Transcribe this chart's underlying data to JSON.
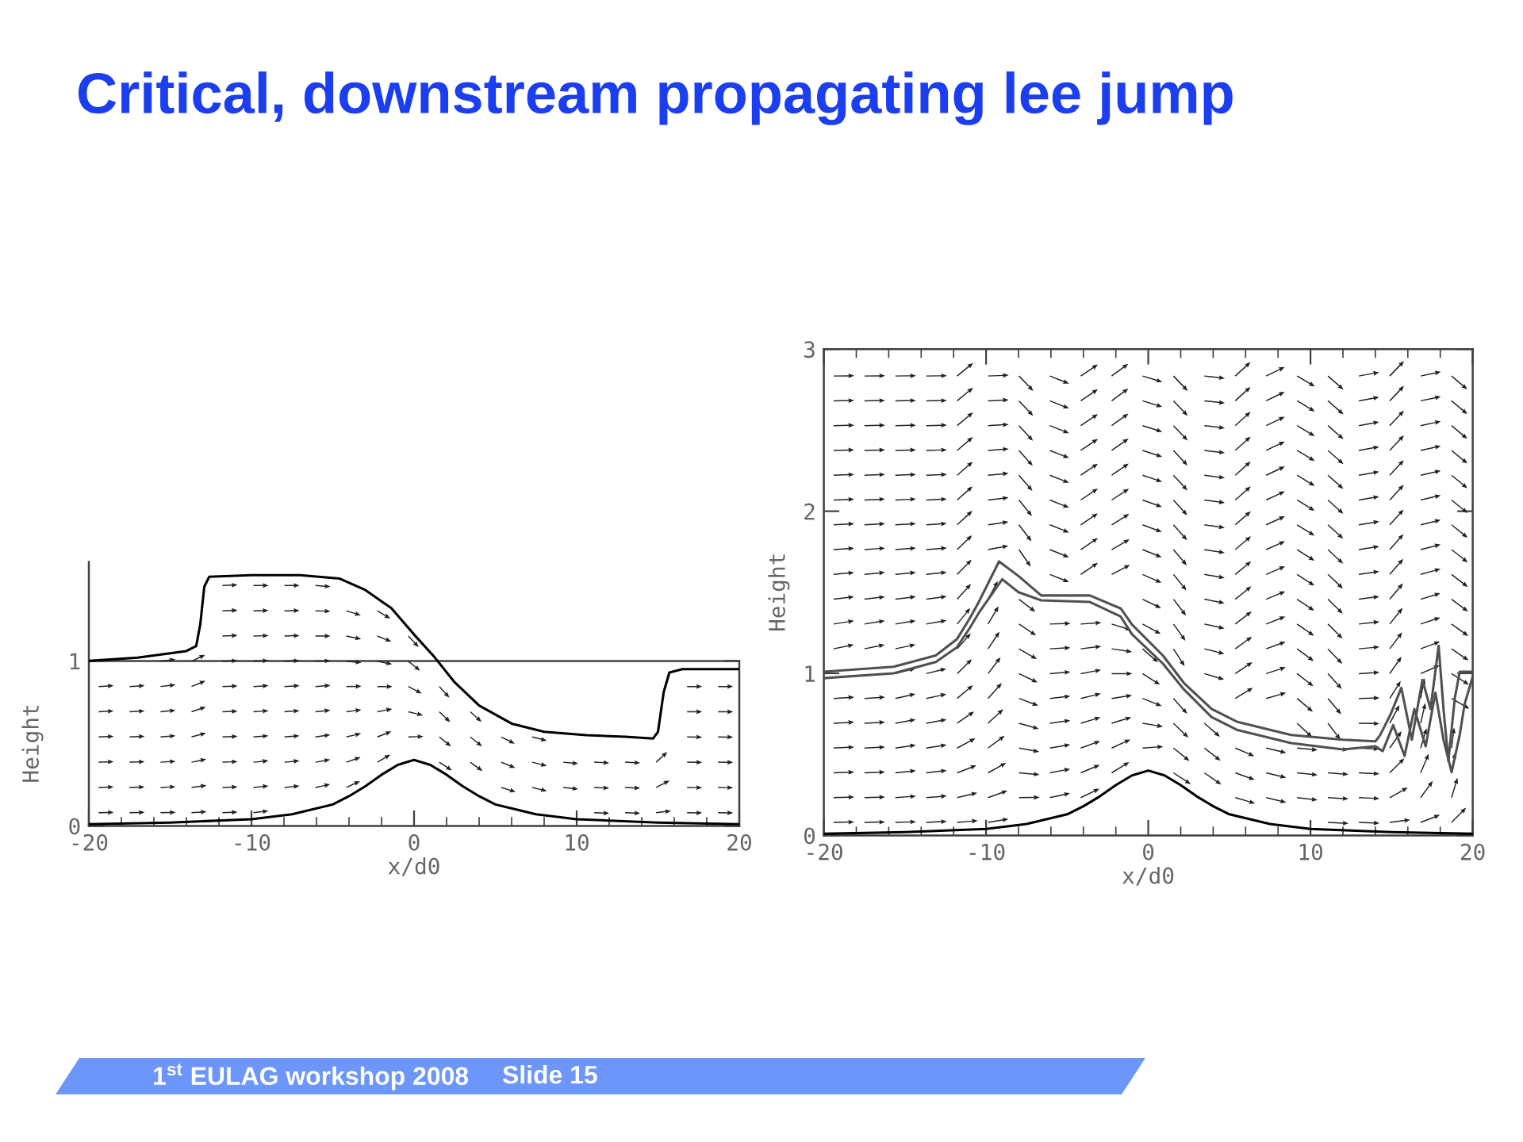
{
  "chart_data": [
    {
      "type": "line",
      "title": "Critical, downstream propagating lee jump",
      "annotations": [
        "1$^{st}$ EULAG workshop 2008",
        "Slide 15"
      ],
      "xlabel": "x/d0",
      "ylabel": "Height",
      "xlim": [
        -20,
        20
      ],
      "ylim": [
        0,
        1.6
      ],
      "xticks": [
        -20,
        {
          "value": -18,
          "label": null
        },
        {
          "value": -16,
          "label": null
        },
        {
          "value": -14,
          "label": null
        },
        {
          "value": -12,
          "label": null
        },
        -10,
        {
          "value": -8,
          "label": null
        },
        {
          "value": -6,
          "label": null
        },
        {
          "value": -4,
          "label": null
        },
        {
          "value": -2,
          "label": null
        },
        0,
        {
          "value": 2,
          "label": null
        },
        {
          "value": 4,
          "label": null
        },
        {
          "value": 6,
          "label": null
        },
        {
          "value": 8,
          "label": null
        },
        10,
        {
          "value": 12,
          "label": null
        },
        {
          "value": 14,
          "label": null
        },
        {
          "value": 16,
          "label": null
        },
        {
          "value": 18,
          "label": null
        },
        20
      ],
      "yticks": [
        0,
        1
      ],
      "ref_lines": [
        {
          "axis": "y",
          "value": 1,
          "color": "#404040"
        }
      ],
      "series": [
        {
          "color": "#000000",
          "x": [
            -20,
            -17,
            -14,
            -13.4,
            -13.15,
            -12.9,
            -12.6,
            -10,
            -7,
            -4.6,
            -3,
            -1.4,
            0,
            1.2,
            2.5,
            4,
            6,
            8,
            10.6,
            13,
            14.7,
            15,
            15.35,
            15.7,
            16.5,
            20
          ],
          "values": [
            1.0,
            1.02,
            1.06,
            1.09,
            1.22,
            1.45,
            1.51,
            1.52,
            1.52,
            1.5,
            1.43,
            1.32,
            1.16,
            1.03,
            0.87,
            0.73,
            0.62,
            0.57,
            0.55,
            0.54,
            0.53,
            0.57,
            0.81,
            0.93,
            0.95,
            0.95
          ]
        },
        {
          "color": "#000000",
          "x": [
            -20,
            -15,
            -10,
            -7.5,
            -5,
            -4,
            -3,
            -2,
            -1,
            0,
            1,
            2,
            3,
            4,
            5,
            7.5,
            10,
            15,
            20
          ],
          "values": [
            0.01,
            0.02,
            0.04,
            0.07,
            0.13,
            0.18,
            0.24,
            0.31,
            0.37,
            0.4,
            0.37,
            0.31,
            0.24,
            0.18,
            0.13,
            0.07,
            0.04,
            0.02,
            0.01
          ]
        }
      ]
    },
    {
      "type": "line",
      "xlabel": "x/d0",
      "ylabel": "Height",
      "xlim": [
        -20,
        20
      ],
      "ylim": [
        0,
        3
      ],
      "xticks": [
        -20,
        {
          "value": -18,
          "label": null
        },
        {
          "value": -16,
          "label": null
        },
        {
          "value": -14,
          "label": null
        },
        {
          "value": -12,
          "label": null
        },
        -10,
        {
          "value": -8,
          "label": null
        },
        {
          "value": -6,
          "label": null
        },
        {
          "value": -4,
          "label": null
        },
        {
          "value": -2,
          "label": null
        },
        0,
        {
          "value": 2,
          "label": null
        },
        {
          "value": 4,
          "label": null
        },
        {
          "value": 6,
          "label": null
        },
        {
          "value": 8,
          "label": null
        },
        10,
        {
          "value": 12,
          "label": null
        },
        {
          "value": 14,
          "label": null
        },
        {
          "value": 16,
          "label": null
        },
        {
          "value": 18,
          "label": null
        },
        20
      ],
      "yticks": [
        0,
        1,
        2,
        3
      ],
      "series": [
        {
          "color": "#505050",
          "x": [
            -20,
            -15.7,
            -13.1,
            -11.8,
            -11,
            -10.5,
            -9.2,
            -8,
            -6.6,
            -3.6,
            -1.7,
            -1,
            0.9,
            2.2,
            3.9,
            5.5,
            8.8,
            12,
            14,
            14.3,
            14.95,
            15.6,
            16.25,
            16.9,
            17.4,
            17.9,
            18.2,
            18.5,
            18.9,
            19.2,
            20
          ],
          "values": [
            1.01,
            1.04,
            1.11,
            1.21,
            1.34,
            1.43,
            1.69,
            1.6,
            1.48,
            1.48,
            1.4,
            1.3,
            1.11,
            0.94,
            0.78,
            0.7,
            0.62,
            0.59,
            0.58,
            0.62,
            0.75,
            0.91,
            0.59,
            0.96,
            0.78,
            1.17,
            0.78,
            0.46,
            0.85,
            1.01,
            1.01
          ]
        },
        {
          "color": "#505050",
          "x": [
            -20,
            -15.7,
            -13.1,
            -11.8,
            -11,
            -10.4,
            -9,
            -8,
            -6.6,
            -3.6,
            -1.7,
            -1,
            0.9,
            2.2,
            3.9,
            5.5,
            8.8,
            12,
            14,
            14.45,
            15.1,
            15.8,
            16.4,
            17.1,
            17.7,
            18.2,
            18.7,
            19.2,
            19.5,
            20
          ],
          "values": [
            0.97,
            1.0,
            1.07,
            1.16,
            1.28,
            1.38,
            1.58,
            1.5,
            1.45,
            1.44,
            1.35,
            1.24,
            1.06,
            0.9,
            0.73,
            0.65,
            0.57,
            0.53,
            0.55,
            0.52,
            0.68,
            0.49,
            0.78,
            0.55,
            0.88,
            0.59,
            0.39,
            0.62,
            0.81,
            0.98
          ]
        },
        {
          "color": "#000000",
          "x": [
            -20,
            -15,
            -10,
            -7.5,
            -5,
            -4,
            -3,
            -2,
            -1,
            0,
            1,
            2,
            3,
            4,
            5,
            7.5,
            10,
            15,
            20
          ],
          "values": [
            0.01,
            0.02,
            0.04,
            0.07,
            0.13,
            0.18,
            0.24,
            0.31,
            0.37,
            0.4,
            0.37,
            0.31,
            0.24,
            0.18,
            0.13,
            0.07,
            0.04,
            0.02,
            0.01
          ]
        }
      ]
    }
  ]
}
